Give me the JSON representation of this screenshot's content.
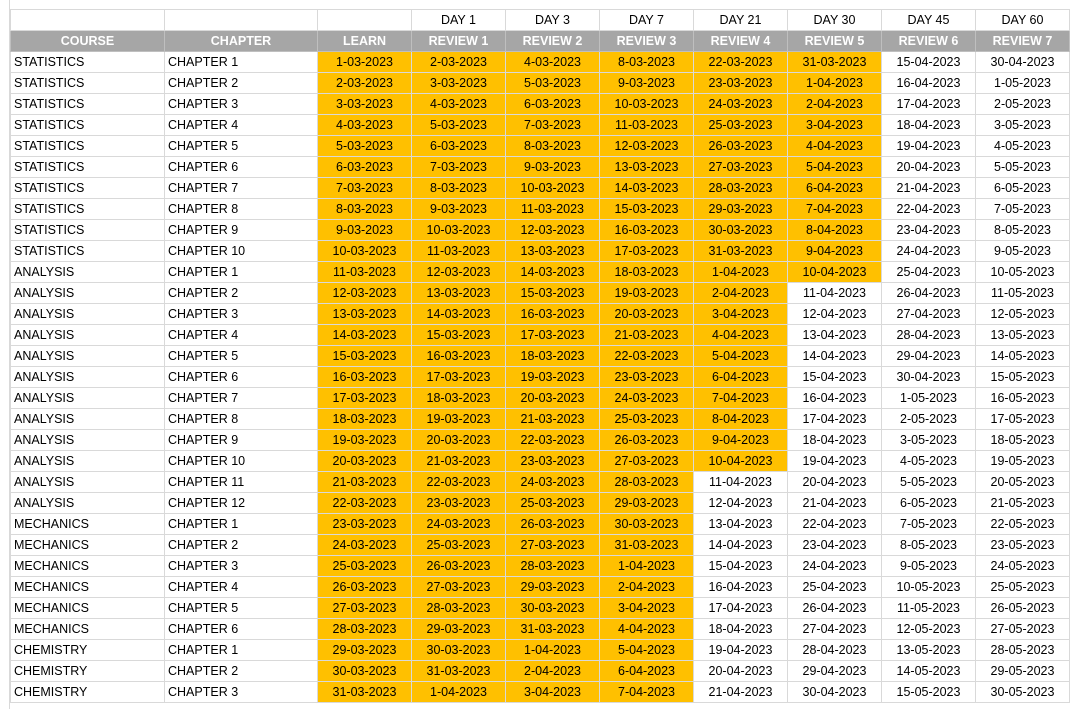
{
  "days_row": [
    "",
    "",
    "",
    "DAY 1",
    "DAY 3",
    "DAY 7",
    "DAY 21",
    "DAY 30",
    "DAY 45",
    "DAY 60"
  ],
  "headers": [
    "COURSE",
    "CHAPTER",
    "LEARN",
    "REVIEW 1",
    "REVIEW 2",
    "REVIEW 3",
    "REVIEW 4",
    "REVIEW 5",
    "REVIEW 6",
    "REVIEW 7"
  ],
  "highlight_color": "#ffc000",
  "header_color": "#a6a6a6",
  "rows": [
    {
      "course": "STATISTICS",
      "chapter": "CHAPTER 1",
      "dates": [
        "1-03-2023",
        "2-03-2023",
        "4-03-2023",
        "8-03-2023",
        "22-03-2023",
        "31-03-2023",
        "15-04-2023",
        "30-04-2023"
      ],
      "highlight_count": 6
    },
    {
      "course": "STATISTICS",
      "chapter": "CHAPTER 2",
      "dates": [
        "2-03-2023",
        "3-03-2023",
        "5-03-2023",
        "9-03-2023",
        "23-03-2023",
        "1-04-2023",
        "16-04-2023",
        "1-05-2023"
      ],
      "highlight_count": 6
    },
    {
      "course": "STATISTICS",
      "chapter": "CHAPTER 3",
      "dates": [
        "3-03-2023",
        "4-03-2023",
        "6-03-2023",
        "10-03-2023",
        "24-03-2023",
        "2-04-2023",
        "17-04-2023",
        "2-05-2023"
      ],
      "highlight_count": 6
    },
    {
      "course": "STATISTICS",
      "chapter": "CHAPTER 4",
      "dates": [
        "4-03-2023",
        "5-03-2023",
        "7-03-2023",
        "11-03-2023",
        "25-03-2023",
        "3-04-2023",
        "18-04-2023",
        "3-05-2023"
      ],
      "highlight_count": 6
    },
    {
      "course": "STATISTICS",
      "chapter": "CHAPTER 5",
      "dates": [
        "5-03-2023",
        "6-03-2023",
        "8-03-2023",
        "12-03-2023",
        "26-03-2023",
        "4-04-2023",
        "19-04-2023",
        "4-05-2023"
      ],
      "highlight_count": 6
    },
    {
      "course": "STATISTICS",
      "chapter": "CHAPTER 6",
      "dates": [
        "6-03-2023",
        "7-03-2023",
        "9-03-2023",
        "13-03-2023",
        "27-03-2023",
        "5-04-2023",
        "20-04-2023",
        "5-05-2023"
      ],
      "highlight_count": 6
    },
    {
      "course": "STATISTICS",
      "chapter": "CHAPTER 7",
      "dates": [
        "7-03-2023",
        "8-03-2023",
        "10-03-2023",
        "14-03-2023",
        "28-03-2023",
        "6-04-2023",
        "21-04-2023",
        "6-05-2023"
      ],
      "highlight_count": 6
    },
    {
      "course": "STATISTICS",
      "chapter": "CHAPTER 8",
      "dates": [
        "8-03-2023",
        "9-03-2023",
        "11-03-2023",
        "15-03-2023",
        "29-03-2023",
        "7-04-2023",
        "22-04-2023",
        "7-05-2023"
      ],
      "highlight_count": 6
    },
    {
      "course": "STATISTICS",
      "chapter": "CHAPTER 9",
      "dates": [
        "9-03-2023",
        "10-03-2023",
        "12-03-2023",
        "16-03-2023",
        "30-03-2023",
        "8-04-2023",
        "23-04-2023",
        "8-05-2023"
      ],
      "highlight_count": 6
    },
    {
      "course": "STATISTICS",
      "chapter": "CHAPTER 10",
      "dates": [
        "10-03-2023",
        "11-03-2023",
        "13-03-2023",
        "17-03-2023",
        "31-03-2023",
        "9-04-2023",
        "24-04-2023",
        "9-05-2023"
      ],
      "highlight_count": 6
    },
    {
      "course": "ANALYSIS",
      "chapter": "CHAPTER 1",
      "dates": [
        "11-03-2023",
        "12-03-2023",
        "14-03-2023",
        "18-03-2023",
        "1-04-2023",
        "10-04-2023",
        "25-04-2023",
        "10-05-2023"
      ],
      "highlight_count": 6
    },
    {
      "course": "ANALYSIS",
      "chapter": "CHAPTER 2",
      "dates": [
        "12-03-2023",
        "13-03-2023",
        "15-03-2023",
        "19-03-2023",
        "2-04-2023",
        "11-04-2023",
        "26-04-2023",
        "11-05-2023"
      ],
      "highlight_count": 5
    },
    {
      "course": "ANALYSIS",
      "chapter": "CHAPTER 3",
      "dates": [
        "13-03-2023",
        "14-03-2023",
        "16-03-2023",
        "20-03-2023",
        "3-04-2023",
        "12-04-2023",
        "27-04-2023",
        "12-05-2023"
      ],
      "highlight_count": 5
    },
    {
      "course": "ANALYSIS",
      "chapter": "CHAPTER 4",
      "dates": [
        "14-03-2023",
        "15-03-2023",
        "17-03-2023",
        "21-03-2023",
        "4-04-2023",
        "13-04-2023",
        "28-04-2023",
        "13-05-2023"
      ],
      "highlight_count": 5
    },
    {
      "course": "ANALYSIS",
      "chapter": "CHAPTER 5",
      "dates": [
        "15-03-2023",
        "16-03-2023",
        "18-03-2023",
        "22-03-2023",
        "5-04-2023",
        "14-04-2023",
        "29-04-2023",
        "14-05-2023"
      ],
      "highlight_count": 5
    },
    {
      "course": "ANALYSIS",
      "chapter": "CHAPTER 6",
      "dates": [
        "16-03-2023",
        "17-03-2023",
        "19-03-2023",
        "23-03-2023",
        "6-04-2023",
        "15-04-2023",
        "30-04-2023",
        "15-05-2023"
      ],
      "highlight_count": 5
    },
    {
      "course": "ANALYSIS",
      "chapter": "CHAPTER 7",
      "dates": [
        "17-03-2023",
        "18-03-2023",
        "20-03-2023",
        "24-03-2023",
        "7-04-2023",
        "16-04-2023",
        "1-05-2023",
        "16-05-2023"
      ],
      "highlight_count": 5
    },
    {
      "course": "ANALYSIS",
      "chapter": "CHAPTER 8",
      "dates": [
        "18-03-2023",
        "19-03-2023",
        "21-03-2023",
        "25-03-2023",
        "8-04-2023",
        "17-04-2023",
        "2-05-2023",
        "17-05-2023"
      ],
      "highlight_count": 5
    },
    {
      "course": "ANALYSIS",
      "chapter": "CHAPTER 9",
      "dates": [
        "19-03-2023",
        "20-03-2023",
        "22-03-2023",
        "26-03-2023",
        "9-04-2023",
        "18-04-2023",
        "3-05-2023",
        "18-05-2023"
      ],
      "highlight_count": 5
    },
    {
      "course": "ANALYSIS",
      "chapter": "CHAPTER 10",
      "dates": [
        "20-03-2023",
        "21-03-2023",
        "23-03-2023",
        "27-03-2023",
        "10-04-2023",
        "19-04-2023",
        "4-05-2023",
        "19-05-2023"
      ],
      "highlight_count": 5
    },
    {
      "course": "ANALYSIS",
      "chapter": "CHAPTER 11",
      "dates": [
        "21-03-2023",
        "22-03-2023",
        "24-03-2023",
        "28-03-2023",
        "11-04-2023",
        "20-04-2023",
        "5-05-2023",
        "20-05-2023"
      ],
      "highlight_count": 4
    },
    {
      "course": "ANALYSIS",
      "chapter": "CHAPTER 12",
      "dates": [
        "22-03-2023",
        "23-03-2023",
        "25-03-2023",
        "29-03-2023",
        "12-04-2023",
        "21-04-2023",
        "6-05-2023",
        "21-05-2023"
      ],
      "highlight_count": 4
    },
    {
      "course": "MECHANICS",
      "chapter": "CHAPTER 1",
      "dates": [
        "23-03-2023",
        "24-03-2023",
        "26-03-2023",
        "30-03-2023",
        "13-04-2023",
        "22-04-2023",
        "7-05-2023",
        "22-05-2023"
      ],
      "highlight_count": 4
    },
    {
      "course": "MECHANICS",
      "chapter": "CHAPTER 2",
      "dates": [
        "24-03-2023",
        "25-03-2023",
        "27-03-2023",
        "31-03-2023",
        "14-04-2023",
        "23-04-2023",
        "8-05-2023",
        "23-05-2023"
      ],
      "highlight_count": 4
    },
    {
      "course": "MECHANICS",
      "chapter": "CHAPTER 3",
      "dates": [
        "25-03-2023",
        "26-03-2023",
        "28-03-2023",
        "1-04-2023",
        "15-04-2023",
        "24-04-2023",
        "9-05-2023",
        "24-05-2023"
      ],
      "highlight_count": 4
    },
    {
      "course": "MECHANICS",
      "chapter": "CHAPTER 4",
      "dates": [
        "26-03-2023",
        "27-03-2023",
        "29-03-2023",
        "2-04-2023",
        "16-04-2023",
        "25-04-2023",
        "10-05-2023",
        "25-05-2023"
      ],
      "highlight_count": 4
    },
    {
      "course": "MECHANICS",
      "chapter": "CHAPTER 5",
      "dates": [
        "27-03-2023",
        "28-03-2023",
        "30-03-2023",
        "3-04-2023",
        "17-04-2023",
        "26-04-2023",
        "11-05-2023",
        "26-05-2023"
      ],
      "highlight_count": 4
    },
    {
      "course": "MECHANICS",
      "chapter": "CHAPTER 6",
      "dates": [
        "28-03-2023",
        "29-03-2023",
        "31-03-2023",
        "4-04-2023",
        "18-04-2023",
        "27-04-2023",
        "12-05-2023",
        "27-05-2023"
      ],
      "highlight_count": 4
    },
    {
      "course": "CHEMISTRY",
      "chapter": "CHAPTER 1",
      "dates": [
        "29-03-2023",
        "30-03-2023",
        "1-04-2023",
        "5-04-2023",
        "19-04-2023",
        "28-04-2023",
        "13-05-2023",
        "28-05-2023"
      ],
      "highlight_count": 4
    },
    {
      "course": "CHEMISTRY",
      "chapter": "CHAPTER 2",
      "dates": [
        "30-03-2023",
        "31-03-2023",
        "2-04-2023",
        "6-04-2023",
        "20-04-2023",
        "29-04-2023",
        "14-05-2023",
        "29-05-2023"
      ],
      "highlight_count": 4
    },
    {
      "course": "CHEMISTRY",
      "chapter": "CHAPTER 3",
      "dates": [
        "31-03-2023",
        "1-04-2023",
        "3-04-2023",
        "7-04-2023",
        "21-04-2023",
        "30-04-2023",
        "15-05-2023",
        "30-05-2023"
      ],
      "highlight_count": 4
    }
  ]
}
